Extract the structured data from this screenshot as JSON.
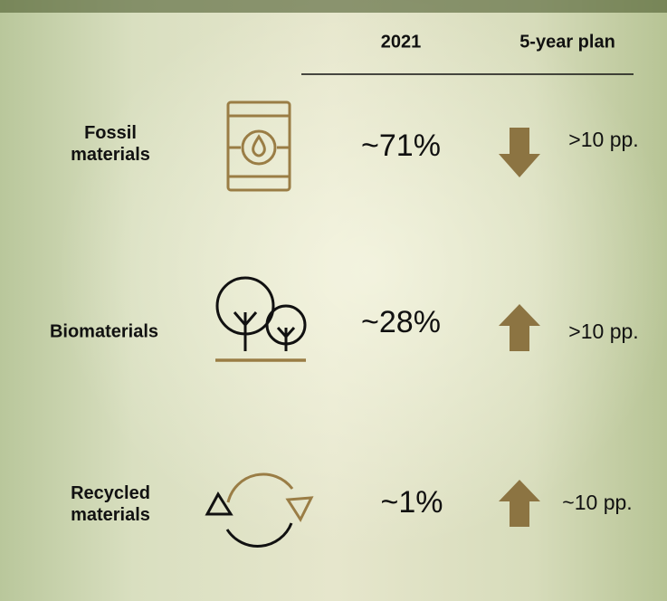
{
  "header": {
    "columns": [
      "2021",
      "5-year plan"
    ]
  },
  "rows": [
    {
      "label": "Fossil materials",
      "value": "~71%",
      "plan": ">10 pp."
    },
    {
      "label": "Biomaterials",
      "value": "~28%",
      "plan": ">10 pp."
    },
    {
      "label": "Recycled materials",
      "value": "~1%",
      "plan": "~10 pp."
    }
  ]
}
